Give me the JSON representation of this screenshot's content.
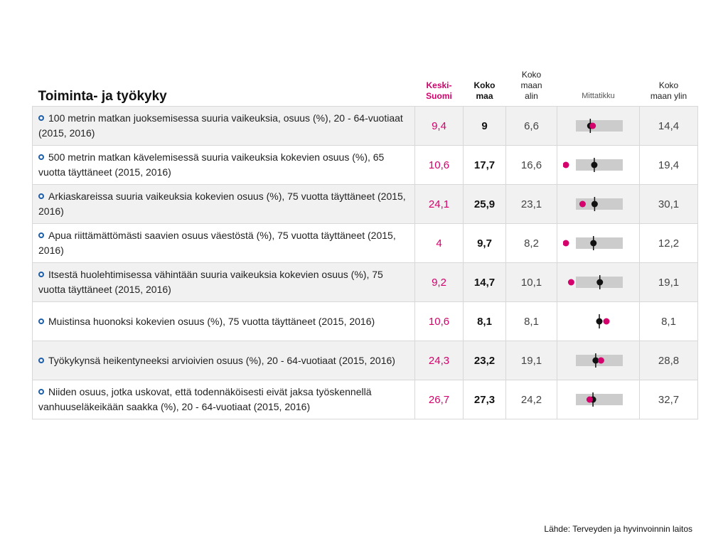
{
  "chart_data": {
    "type": "table",
    "title": "Toiminta- ja työkyky",
    "headers": {
      "indicator": "",
      "region": "Keski-\nSuomi",
      "whole": "Koko\nmaa",
      "min": "Koko\nmaan\nalin",
      "gauge": "Mittatikku",
      "max": "Koko\nmaan ylin"
    },
    "rows": [
      {
        "label": "100 metrin matkan juoksemisessa suuria vaikeuksia, osuus (%), 20 - 64-vuotiaat (2015, 2016)",
        "region": "9,4",
        "whole": "9",
        "min": "6,6",
        "max": "14,4",
        "region_value": 9.4,
        "whole_value": 9,
        "min_value": 6.6,
        "max_value": 14.4
      },
      {
        "label": "500 metrin matkan kävelemisessä suuria vaikeuksia kokevien osuus (%), 65 vuotta täyttäneet (2015, 2016)",
        "region": "10,6",
        "whole": "17,7",
        "min": "16,6",
        "max": "19,4",
        "region_value": 10.6,
        "whole_value": 17.7,
        "min_value": 16.6,
        "max_value": 19.4
      },
      {
        "label": "Arkiaskareissa suuria vaikeuksia kokevien osuus (%), 75 vuotta täyttäneet (2015, 2016)",
        "region": "24,1",
        "whole": "25,9",
        "min": "23,1",
        "max": "30,1",
        "region_value": 24.1,
        "whole_value": 25.9,
        "min_value": 23.1,
        "max_value": 30.1
      },
      {
        "label": "Apua riittämättömästi saavien osuus väestöstä (%), 75 vuotta täyttäneet (2015, 2016)",
        "region": "4",
        "whole": "9,7",
        "min": "8,2",
        "max": "12,2",
        "region_value": 4,
        "whole_value": 9.7,
        "min_value": 8.2,
        "max_value": 12.2
      },
      {
        "label": "Itsestä huolehtimisessa vähintään suuria vaikeuksia kokevien osuus (%), 75 vuotta täyttäneet (2015, 2016)",
        "region": "9,2",
        "whole": "14,7",
        "min": "10,1",
        "max": "19,1",
        "region_value": 9.2,
        "whole_value": 14.7,
        "min_value": 10.1,
        "max_value": 19.1
      },
      {
        "label": "Muistinsa huonoksi kokevien osuus (%), 75 vuotta täyttäneet (2015, 2016)",
        "region": "10,6",
        "whole": "8,1",
        "min": "8,1",
        "max": "8,1",
        "region_value": 10.6,
        "whole_value": 8.1,
        "min_value": 8.1,
        "max_value": 8.1
      },
      {
        "label": "Työkykynsä heikentyneeksi arvioivien osuus (%), 20 - 64-vuotiaat (2015, 2016)",
        "region": "24,3",
        "whole": "23,2",
        "min": "19,1",
        "max": "28,8",
        "region_value": 24.3,
        "whole_value": 23.2,
        "min_value": 19.1,
        "max_value": 28.8
      },
      {
        "label": "Niiden osuus, jotka uskovat, että todennäköisesti eivät jaksa työskennellä vanhuuseläkeikään saakka (%), 20 - 64-vuotiaat (2015, 2016)",
        "region": "26,7",
        "whole": "27,3",
        "min": "24,2",
        "max": "32,7",
        "region_value": 26.7,
        "whole_value": 27.3,
        "min_value": 24.2,
        "max_value": 32.7
      }
    ]
  },
  "source": "Lähde: Terveyden ja hyvinvoinnin laitos",
  "colors": {
    "region": "#d4006c",
    "whole": "#111111",
    "bar": "#cccccc",
    "info_icon": "#1f5fa8"
  },
  "icons": {
    "row_info": "info-icon"
  }
}
